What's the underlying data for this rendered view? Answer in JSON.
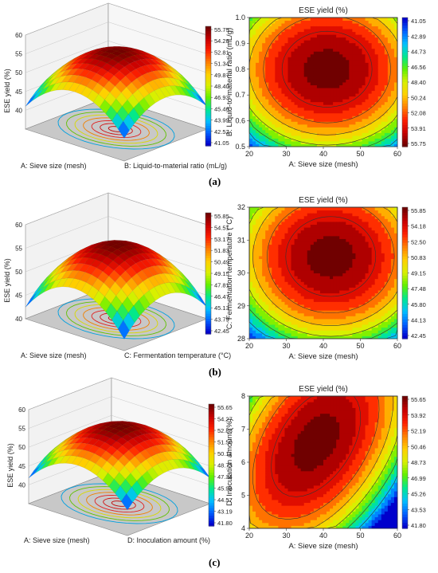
{
  "panel_labels": [
    "(a)",
    "(b)",
    "(c)"
  ],
  "colormap": [
    "#0000cc",
    "#0060ff",
    "#00c0ff",
    "#00e890",
    "#60f000",
    "#d8f000",
    "#ffd000",
    "#ff8000",
    "#ff2000",
    "#c80000",
    "#700000"
  ],
  "chart_data": [
    {
      "type": "surface",
      "panel": "a",
      "xlabel": "A: Sieve size (mesh)",
      "ylabel": "B: Liquid-to-material ratio (mL/g)",
      "zlabel": "ESE yield (%)",
      "zlim": [
        35,
        60
      ],
      "zticks": [
        40,
        45,
        50,
        55,
        60
      ],
      "colorbar_ticks": [
        "55.75",
        "54.28",
        "52.81",
        "51.34",
        "49.87",
        "48.40",
        "46.93",
        "45.46",
        "43.99",
        "42.52",
        "41.05"
      ],
      "zmin": 41.05,
      "zmax": 55.75
    },
    {
      "type": "contour",
      "panel": "a",
      "title": "ESE yield (%)",
      "xlabel": "A: Sieve size (mesh)",
      "ylabel": "B: Liquid-to-material ratio (mL/g)",
      "xlim": [
        20,
        60
      ],
      "ylim": [
        0.5,
        1.0
      ],
      "xticks": [
        20,
        30,
        40,
        50,
        60
      ],
      "yticks": [
        "0.5",
        "0.6",
        "0.7",
        "0.8",
        "0.9",
        "1.0"
      ],
      "colorbar_ticks": [
        "41.05",
        "42.89",
        "44.73",
        "46.56",
        "48.40",
        "50.24",
        "52.08",
        "53.91",
        "55.75"
      ],
      "colorbar_reversed": true,
      "optimum": [
        41,
        0.8
      ],
      "zmin": 41.05,
      "zmax": 55.75,
      "scale": [
        0.62,
        0.6
      ],
      "tilt": 0.0
    },
    {
      "type": "surface",
      "panel": "b",
      "xlabel": "A: Sieve size (mesh)",
      "ylabel": "C: Fermentation temperature (°C)",
      "zlabel": "ESE yield (%)",
      "zlim": [
        40,
        60
      ],
      "zticks": [
        40,
        45,
        50,
        55,
        60
      ],
      "colorbar_ticks": [
        "55.85",
        "54.51",
        "53.17",
        "51.83",
        "50.49",
        "49.15",
        "47.81",
        "46.47",
        "45.13",
        "43.79",
        "42.45"
      ],
      "zmin": 42.45,
      "zmax": 55.85
    },
    {
      "type": "contour",
      "panel": "b",
      "title": "ESE yield (%)",
      "xlabel": "A: Sieve size (mesh)",
      "ylabel": "C: Fermentation temperature (°C)",
      "xlim": [
        20,
        60
      ],
      "ylim": [
        28,
        32
      ],
      "xticks": [
        20,
        30,
        40,
        50,
        60
      ],
      "yticks": [
        "28",
        "29",
        "30",
        "31",
        "32"
      ],
      "colorbar_ticks": [
        "55.85",
        "54.18",
        "52.50",
        "50.83",
        "49.15",
        "47.48",
        "45.80",
        "44.13",
        "42.45"
      ],
      "colorbar_reversed": false,
      "optimum": [
        42,
        30.5
      ],
      "zmin": 42.45,
      "zmax": 55.85,
      "scale": [
        0.62,
        0.62
      ],
      "tilt": 0.0
    },
    {
      "type": "surface",
      "panel": "c",
      "xlabel": "A: Sieve size (mesh)",
      "ylabel": "D: Inoculation amount (%)",
      "zlabel": "ESE yield (%)",
      "zlim": [
        35,
        60
      ],
      "zticks": [
        40,
        45,
        50,
        55,
        60
      ],
      "colorbar_ticks": [
        "55.65",
        "54.27",
        "52.88",
        "51.50",
        "50.11",
        "48.73",
        "47.34",
        "45.96",
        "44.57",
        "43.19",
        "41.80"
      ],
      "zmin": 41.8,
      "zmax": 55.65
    },
    {
      "type": "contour",
      "panel": "c",
      "title": "ESE yield (%)",
      "xlabel": "A: Sieve size (mesh)",
      "ylabel": "D: Inoculation amount (%)",
      "xlim": [
        20,
        60
      ],
      "ylim": [
        4,
        8
      ],
      "xticks": [
        20,
        30,
        40,
        50,
        60
      ],
      "yticks": [
        "4",
        "5",
        "6",
        "7",
        "8"
      ],
      "colorbar_ticks": [
        "55.65",
        "53.92",
        "52.19",
        "50.46",
        "48.73",
        "46.99",
        "45.26",
        "43.53",
        "41.80"
      ],
      "colorbar_reversed": false,
      "optimum": [
        38,
        6.6
      ],
      "zmin": 41.8,
      "zmax": 55.65,
      "scale": [
        0.55,
        0.75
      ],
      "tilt": -0.45
    }
  ]
}
